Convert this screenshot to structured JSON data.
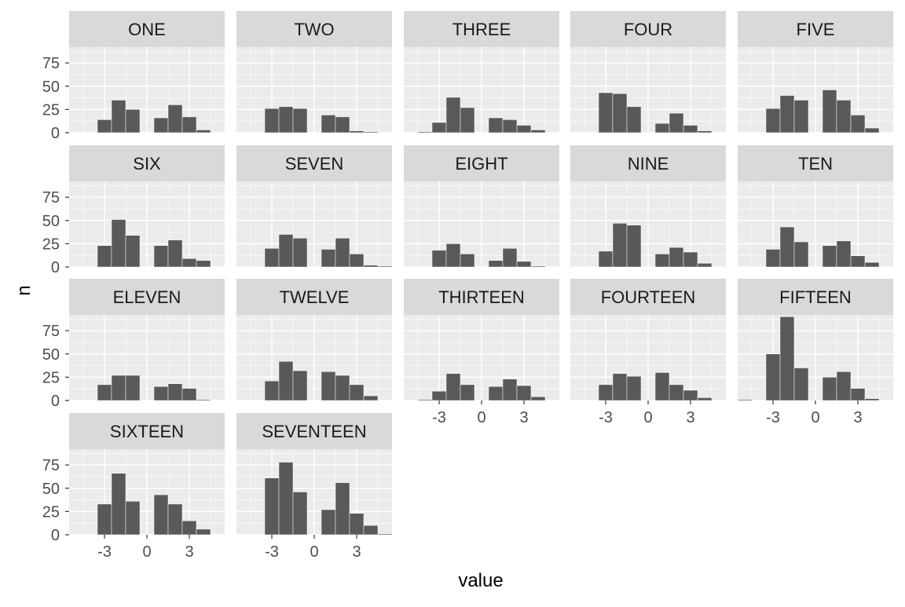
{
  "chart_data": {
    "type": "bar",
    "xlabel": "value",
    "ylabel": "n",
    "xlim": [
      -5.5,
      5.5
    ],
    "ylim": [
      0,
      92
    ],
    "x_ticks": [
      -3,
      0,
      3
    ],
    "y_ticks": [
      0,
      25,
      50,
      75
    ],
    "grid": true,
    "colors": {
      "bar": "#595959",
      "panel": "#ebebeb",
      "strip": "#d9d9d9",
      "grid_major": "#ffffff",
      "text": "#4d4d4d",
      "title": "#1a1a1a"
    },
    "panels": [
      {
        "name": "ONE",
        "x": [
          -3,
          -2,
          -1,
          1,
          2,
          3,
          4
        ],
        "values": [
          14,
          35,
          25,
          16,
          30,
          17,
          3
        ]
      },
      {
        "name": "TWO",
        "x": [
          -3,
          -2,
          -1,
          1,
          2,
          3,
          4
        ],
        "values": [
          26,
          28,
          26,
          19,
          17,
          2,
          1
        ]
      },
      {
        "name": "THREE",
        "x": [
          -4,
          -3,
          -2,
          -1,
          1,
          2,
          3,
          4
        ],
        "values": [
          1,
          11,
          38,
          27,
          16,
          14,
          8,
          3
        ]
      },
      {
        "name": "FOUR",
        "x": [
          -3,
          -2,
          -1,
          1,
          2,
          3,
          4
        ],
        "values": [
          43,
          42,
          28,
          10,
          21,
          8,
          2
        ]
      },
      {
        "name": "FIVE",
        "x": [
          -3,
          -2,
          -1,
          1,
          2,
          3,
          4
        ],
        "values": [
          26,
          40,
          35,
          46,
          35,
          19,
          5
        ]
      },
      {
        "name": "SIX",
        "x": [
          -3,
          -2,
          -1,
          1,
          2,
          3,
          4
        ],
        "values": [
          23,
          51,
          34,
          23,
          29,
          9,
          7
        ]
      },
      {
        "name": "SEVEN",
        "x": [
          -3,
          -2,
          -1,
          1,
          2,
          3,
          4,
          5
        ],
        "values": [
          20,
          35,
          31,
          19,
          31,
          14,
          2,
          1
        ]
      },
      {
        "name": "EIGHT",
        "x": [
          -3,
          -2,
          -1,
          1,
          2,
          3,
          4
        ],
        "values": [
          18,
          25,
          14,
          7,
          20,
          6,
          1
        ]
      },
      {
        "name": "NINE",
        "x": [
          -3,
          -2,
          -1,
          1,
          2,
          3,
          4
        ],
        "values": [
          17,
          47,
          45,
          14,
          21,
          16,
          4
        ]
      },
      {
        "name": "TEN",
        "x": [
          -3,
          -2,
          -1,
          1,
          2,
          3,
          4
        ],
        "values": [
          19,
          43,
          27,
          23,
          28,
          12,
          5
        ]
      },
      {
        "name": "ELEVEN",
        "x": [
          -3,
          -2,
          -1,
          1,
          2,
          3,
          4
        ],
        "values": [
          17,
          27,
          27,
          15,
          18,
          13,
          1
        ]
      },
      {
        "name": "TWELVE",
        "x": [
          -3,
          -2,
          -1,
          1,
          2,
          3,
          4
        ],
        "values": [
          21,
          42,
          32,
          31,
          27,
          17,
          5
        ]
      },
      {
        "name": "THIRTEEN",
        "x": [
          -4,
          -3,
          -2,
          -1,
          1,
          2,
          3,
          4
        ],
        "values": [
          1,
          10,
          29,
          17,
          15,
          23,
          16,
          4
        ]
      },
      {
        "name": "FOURTEEN",
        "x": [
          -3,
          -2,
          -1,
          1,
          2,
          3,
          4
        ],
        "values": [
          17,
          29,
          26,
          30,
          17,
          11,
          3
        ]
      },
      {
        "name": "FIFTEEN",
        "x": [
          -5,
          -3,
          -2,
          -1,
          1,
          2,
          3,
          4
        ],
        "values": [
          1,
          50,
          90,
          35,
          25,
          31,
          13,
          2
        ]
      },
      {
        "name": "SIXTEEN",
        "x": [
          -3,
          -2,
          -1,
          1,
          2,
          3,
          4
        ],
        "values": [
          33,
          66,
          36,
          43,
          33,
          15,
          6
        ]
      },
      {
        "name": "SEVENTEEN",
        "x": [
          -3,
          -2,
          -1,
          1,
          2,
          3,
          4,
          5
        ],
        "values": [
          61,
          78,
          46,
          27,
          56,
          23,
          10,
          1
        ]
      }
    ]
  }
}
